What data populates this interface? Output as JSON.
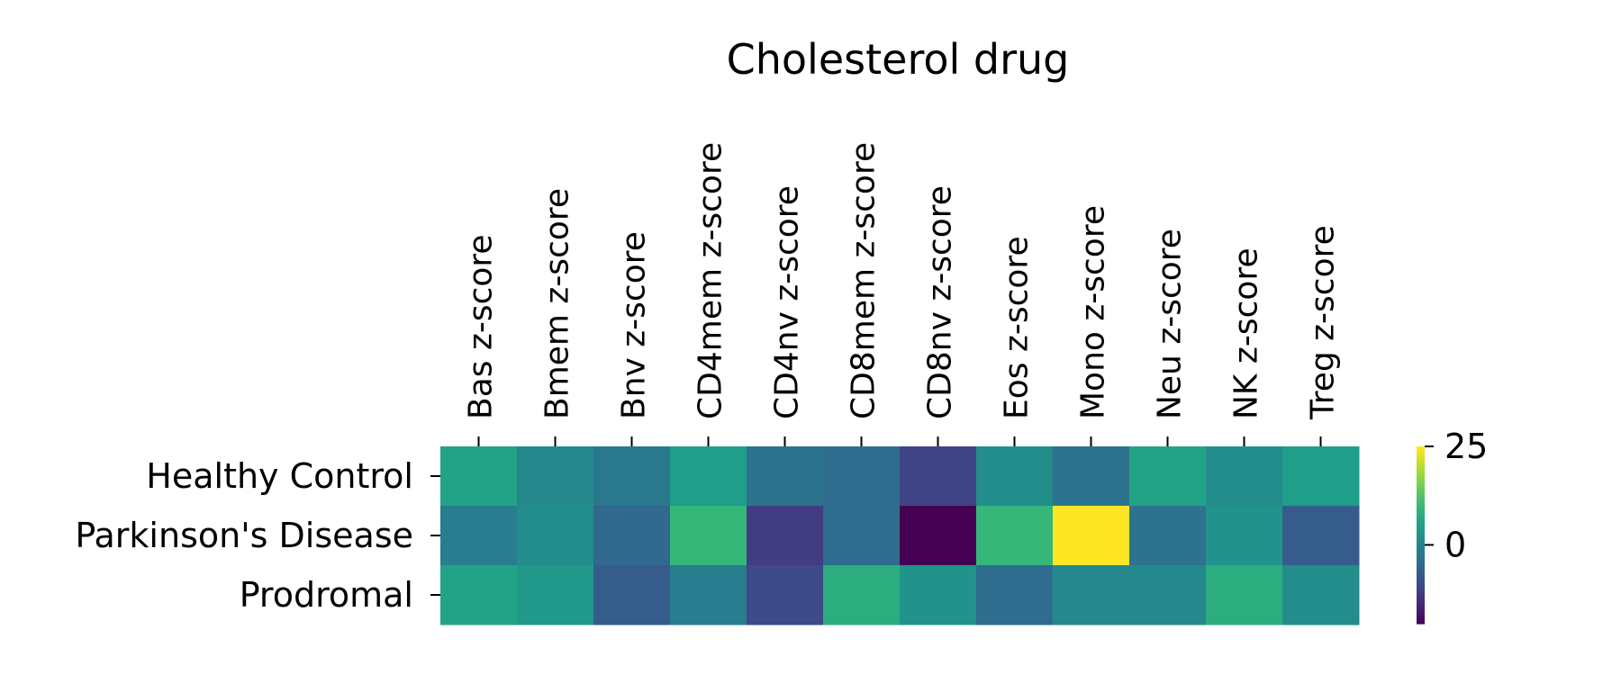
{
  "chart_data": {
    "type": "heatmap",
    "title": "Cholesterol drug",
    "columns": [
      "Bas z-score",
      "Bmem z-score",
      "Bnv z-score",
      "CD4mem z-score",
      "CD4nv z-score",
      "CD8mem z-score",
      "CD8nv z-score",
      "Eos z-score",
      "Mono z-score",
      "Neu z-score",
      "NK z-score",
      "Treg z-score"
    ],
    "rows": [
      "Healthy Control",
      "Parkinson's Disease",
      "Prodromal"
    ],
    "values": [
      [
        6,
        1,
        -2,
        5,
        -3,
        -4,
        -11,
        2,
        -3,
        6,
        2,
        5
      ],
      [
        -1,
        2,
        -5,
        10,
        -12,
        -4,
        -20,
        10,
        25,
        -3,
        3,
        -7
      ],
      [
        6,
        4,
        -7,
        -1,
        -10,
        8,
        3,
        -4,
        1,
        1,
        8,
        2
      ]
    ],
    "colorbar": {
      "ticks": [
        25,
        0
      ],
      "vmin": -20,
      "vmax": 25
    },
    "colormap": "viridis"
  }
}
